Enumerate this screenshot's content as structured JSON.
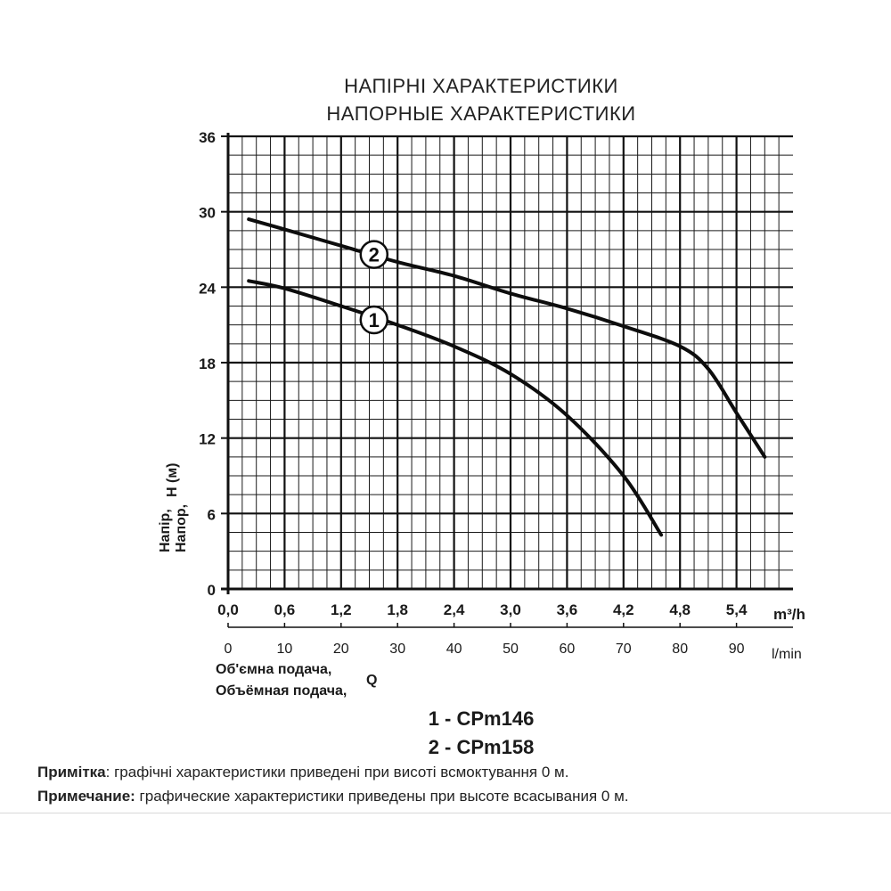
{
  "titles": {
    "line1": "НАПІРНІ ХАРАКТЕРИСТИКИ",
    "line2": "НАПОРНЫЕ ХАРАКТЕРИСТИКИ"
  },
  "legend": {
    "line1": "1 - CPm146",
    "line2": "2 - CPm158"
  },
  "notes": {
    "ua_label": "Примітка",
    "ua_text": ": графічні характеристики приведені при висоті всмоктування 0 м.",
    "ru_label": "Примечание:",
    "ru_text": " графические характеристики приведены при высоте всасывания 0 м."
  },
  "chart_data": {
    "type": "line",
    "grid": true,
    "ylabel": {
      "uk": "Напір,",
      "ru": "Напор,",
      "symbol": "H (м)"
    },
    "xlabel": {
      "uk": "Об'ємна подача,",
      "ru": "Объёмная подача,",
      "symbol": "Q"
    },
    "x_unit_m3h": "m³/h",
    "x_unit_lmin": "l/min",
    "xlim": [
      0,
      6.0
    ],
    "ylim": [
      0,
      36
    ],
    "y_ticks": [
      0,
      6,
      12,
      18,
      24,
      30,
      36
    ],
    "x_ticks_m3h": [
      "0,0",
      "0,6",
      "1,2",
      "1,8",
      "2,4",
      "3,0",
      "3,6",
      "4,2",
      "4,8",
      "5,4"
    ],
    "x_ticks_lmin": [
      "0",
      "10",
      "20",
      "30",
      "40",
      "50",
      "60",
      "70",
      "80",
      "90"
    ],
    "series": [
      {
        "name": "1",
        "label_at": [
          1.55,
          21.4
        ],
        "points": [
          [
            0.22,
            24.5
          ],
          [
            0.6,
            23.9
          ],
          [
            1.2,
            22.5
          ],
          [
            1.8,
            21.0
          ],
          [
            2.4,
            19.3
          ],
          [
            3.0,
            17.1
          ],
          [
            3.6,
            13.8
          ],
          [
            4.2,
            9.0
          ],
          [
            4.6,
            4.3
          ]
        ]
      },
      {
        "name": "2",
        "label_at": [
          1.55,
          26.6
        ],
        "points": [
          [
            0.22,
            29.4
          ],
          [
            0.6,
            28.6
          ],
          [
            1.2,
            27.3
          ],
          [
            1.8,
            26.0
          ],
          [
            2.4,
            24.9
          ],
          [
            3.0,
            23.5
          ],
          [
            3.6,
            22.3
          ],
          [
            4.2,
            20.9
          ],
          [
            4.8,
            19.3
          ],
          [
            5.1,
            17.5
          ],
          [
            5.4,
            14.0
          ],
          [
            5.7,
            10.5
          ]
        ]
      }
    ]
  }
}
